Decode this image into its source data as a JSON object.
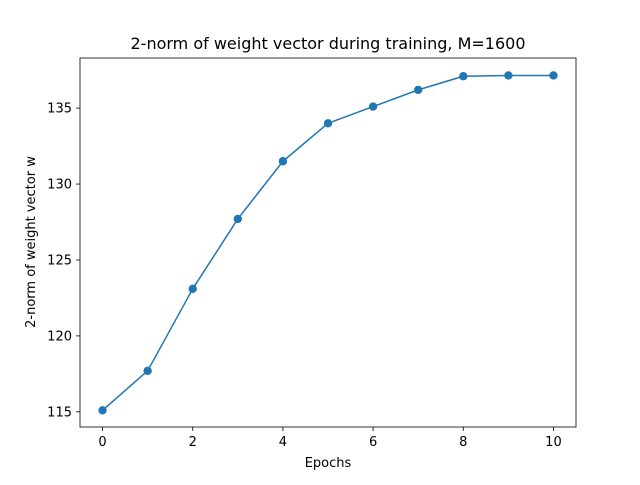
{
  "chart_data": {
    "type": "line",
    "title": "2-norm of weight vector during training, M=1600",
    "xlabel": "Epochs",
    "ylabel": "2-norm of weight vector w",
    "x": [
      0,
      1,
      2,
      3,
      4,
      5,
      6,
      7,
      8,
      9,
      10
    ],
    "series": [
      {
        "values": [
          115.1,
          117.7,
          123.1,
          127.7,
          131.5,
          134.0,
          135.1,
          136.2,
          137.1,
          137.15,
          137.15
        ],
        "color": "#1f77b4",
        "marker": "circle"
      }
    ],
    "xlim": [
      -0.5,
      10.5
    ],
    "ylim": [
      114.0,
      138.3
    ],
    "xticks": [
      0,
      2,
      4,
      6,
      8,
      10
    ],
    "yticks": [
      115,
      120,
      125,
      130,
      135
    ],
    "grid": false
  }
}
